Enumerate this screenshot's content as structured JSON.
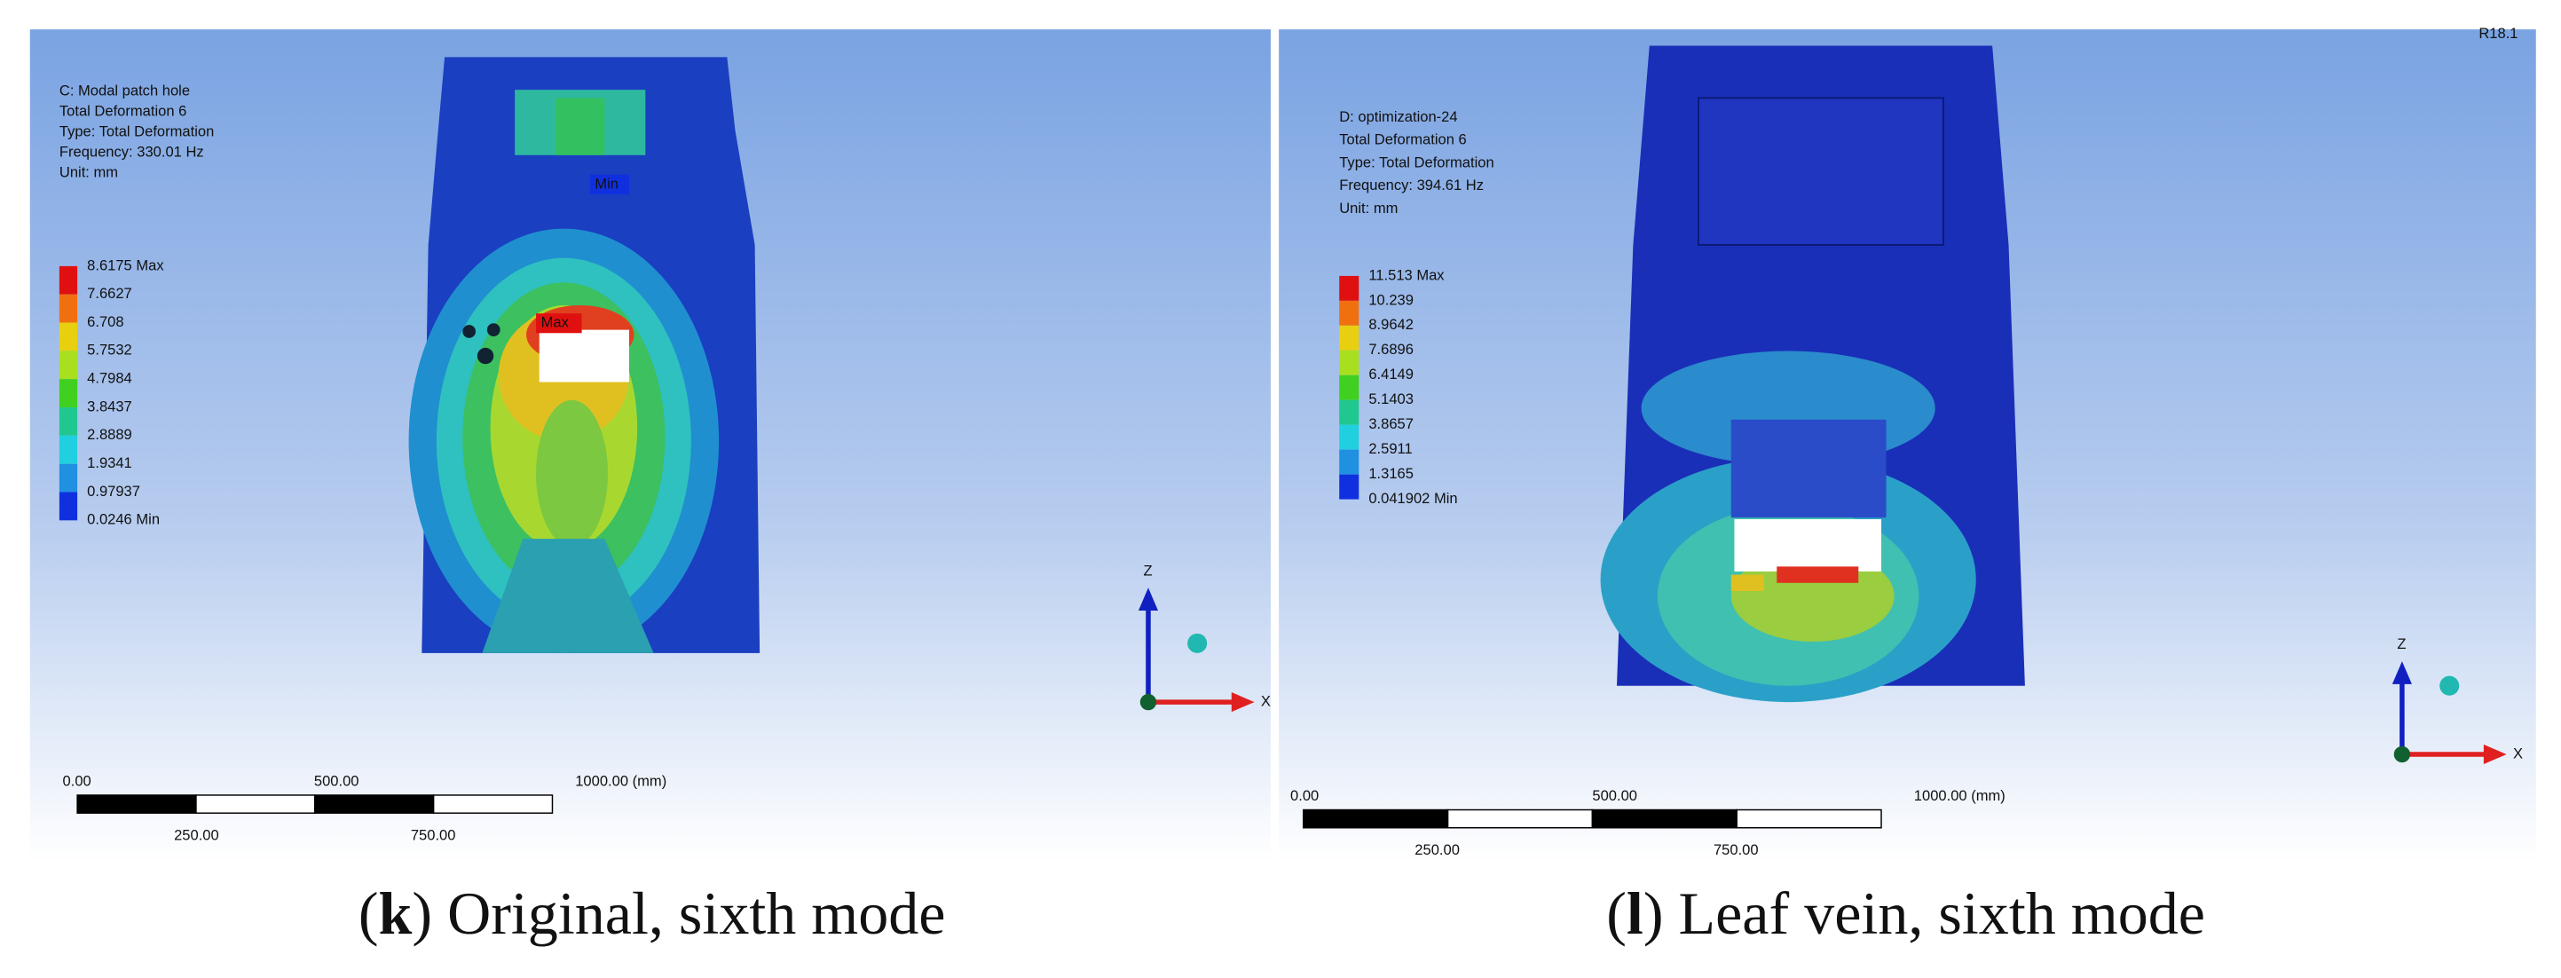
{
  "panels": [
    {
      "info": [
        "C: Modal patch hole",
        "Total Deformation 6",
        "Type: Total Deformation",
        "Frequency: 330.01 Hz",
        "Unit: mm"
      ],
      "legend": [
        "8.6175 Max",
        "7.6627",
        "6.708",
        "5.7532",
        "4.7984",
        "3.8437",
        "2.8889",
        "1.9341",
        "0.97937",
        "0.0246 Min"
      ],
      "max_tag": "Max",
      "min_tag": "Min",
      "scale_top": [
        "0.00",
        "500.00",
        "1000.00 (mm)"
      ],
      "scale_bottom": [
        "250.00",
        "750.00"
      ],
      "axis_z": "Z",
      "axis_x": "X",
      "caption": [
        "(",
        "k",
        ") Original, sixth mode"
      ]
    },
    {
      "info": [
        "D: optimization-24",
        "Total Deformation 6",
        "Type: Total Deformation",
        "Frequency: 394.61 Hz",
        "Unit: mm"
      ],
      "legend": [
        "11.513 Max",
        "10.239",
        "8.9642",
        "7.6896",
        "6.4149",
        "5.1403",
        "3.8657",
        "2.5911",
        "1.3165",
        "0.041902 Min"
      ],
      "version": "R18.1",
      "scale_top": [
        "0.00",
        "500.00",
        "1000.00 (mm)"
      ],
      "scale_bottom": [
        "250.00",
        "750.00"
      ],
      "axis_z": "Z",
      "axis_x": "X",
      "caption": [
        "(",
        "l",
        ") Leaf vein, sixth mode"
      ]
    }
  ]
}
